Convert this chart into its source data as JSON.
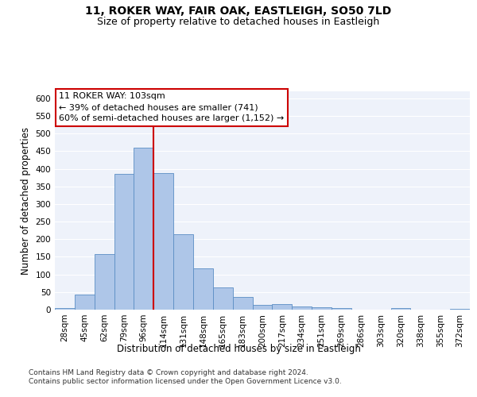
{
  "title_line1": "11, ROKER WAY, FAIR OAK, EASTLEIGH, SO50 7LD",
  "title_line2": "Size of property relative to detached houses in Eastleigh",
  "xlabel": "Distribution of detached houses by size in Eastleigh",
  "ylabel": "Number of detached properties",
  "bar_labels": [
    "28sqm",
    "45sqm",
    "62sqm",
    "79sqm",
    "96sqm",
    "114sqm",
    "131sqm",
    "148sqm",
    "165sqm",
    "183sqm",
    "200sqm",
    "217sqm",
    "234sqm",
    "251sqm",
    "269sqm",
    "286sqm",
    "303sqm",
    "320sqm",
    "338sqm",
    "355sqm",
    "372sqm"
  ],
  "bar_heights": [
    5,
    42,
    158,
    385,
    460,
    388,
    215,
    118,
    63,
    35,
    14,
    16,
    10,
    6,
    5,
    0,
    0,
    5,
    0,
    0,
    2
  ],
  "bar_color": "#aec6e8",
  "bar_edge_color": "#5b8ec4",
  "vline_x_index": 4,
  "vline_color": "#cc0000",
  "annotation_text": "11 ROKER WAY: 103sqm\n← 39% of detached houses are smaller (741)\n60% of semi-detached houses are larger (1,152) →",
  "annotation_box_color": "#ffffff",
  "annotation_box_edge": "#cc0000",
  "ylim": [
    0,
    620
  ],
  "yticks": [
    0,
    50,
    100,
    150,
    200,
    250,
    300,
    350,
    400,
    450,
    500,
    550,
    600
  ],
  "footer_line1": "Contains HM Land Registry data © Crown copyright and database right 2024.",
  "footer_line2": "Contains public sector information licensed under the Open Government Licence v3.0.",
  "background_color": "#eef2fa",
  "grid_color": "#ffffff",
  "title_fontsize": 10,
  "subtitle_fontsize": 9,
  "axis_label_fontsize": 8.5,
  "tick_fontsize": 7.5,
  "annotation_fontsize": 8,
  "footer_fontsize": 6.5
}
